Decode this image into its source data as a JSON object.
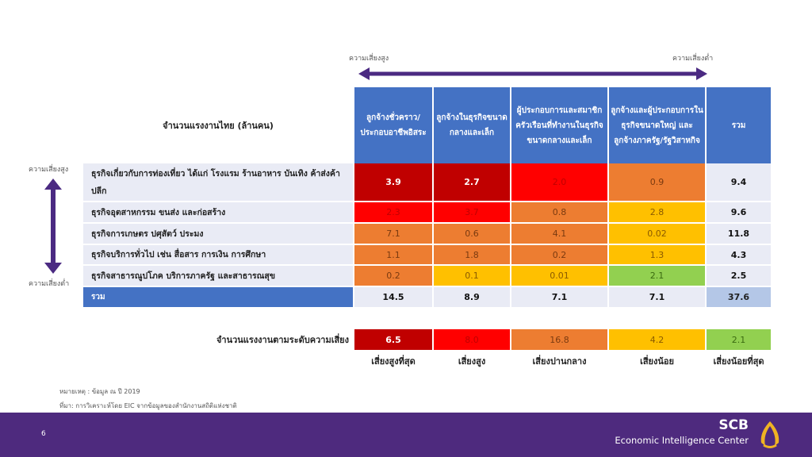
{
  "risk_axis": {
    "high": "ความเสี่ยงสูง",
    "low": "ความเสี่ยงต่ำ"
  },
  "table": {
    "title": "จำนวนแรงงานไทย (ล้านคน)",
    "columns": [
      "ลูกจ้างชั่วคราว/ประกอบอาชีพอิสระ",
      "ลูกจ้างในธุรกิจขนาดกลางและเล็ก",
      "ผู้ประกอบการและสมาชิกครัวเรือนที่ทำงานในธุรกิจขนาดกลางและเล็ก",
      "ลูกจ้างและผู้ประกอบการในธุรกิจขนาดใหญ่ และลูกจ้างภาครัฐ/รัฐวิสาหกิจ",
      "รวม"
    ],
    "rows": [
      {
        "label": "ธุรกิจเกี่ยวกับการท่องเที่ยว ได้แก่ โรงแรม ร้านอาหาร บันเทิง ค้าส่งค้าปลีก",
        "values": [
          "3.9",
          "2.7",
          "2.0",
          "0.9",
          "9.4"
        ]
      },
      {
        "label": "ธุรกิจอุตสาหกรรม ขนส่ง และก่อสร้าง",
        "values": [
          "2.3",
          "3.7",
          "0.8",
          "2.8",
          "9.6"
        ]
      },
      {
        "label": "ธุรกิจการเกษตร ปศุสัตว์ ประมง",
        "values": [
          "7.1",
          "0.6",
          "4.1",
          "0.02",
          "11.8"
        ]
      },
      {
        "label": "ธุรกิจบริการทั่วไป เช่น สื่อสาร การเงิน การศึกษา",
        "values": [
          "1.1",
          "1.8",
          "0.2",
          "1.3",
          "4.3"
        ]
      },
      {
        "label": "ธุรกิจสาธารณูปโภค บริการภาครัฐ และสาธารณสุข",
        "values": [
          "0.2",
          "0.1",
          "0.01",
          "2.1",
          "2.5"
        ]
      }
    ],
    "total": {
      "label": "รวม",
      "values": [
        "14.5",
        "8.9",
        "7.1",
        "7.1",
        "37.6"
      ]
    }
  },
  "risk_levels": {
    "label": "จำนวนแรงงานตามระดับความเสี่ยง",
    "values": [
      "6.5",
      "8.0",
      "16.8",
      "4.2",
      "2.1"
    ],
    "names": [
      "เสี่ยงสูงที่สุด",
      "เสี่ยงสูง",
      "เสี่ยงปานกลาง",
      "เสี่ยงน้อย",
      "เสี่ยงน้อยที่สุด"
    ]
  },
  "notes": {
    "note": "หมายเหตุ : ข้อมูล ณ ปี 2019",
    "source": "ที่มา: การวิเคราะห์โดย EIC จากข้อมูลของสำนักงานสถิติแห่งชาติ"
  },
  "footer": {
    "page": "6",
    "brand": "SCB",
    "brand_sub": "Economic Intelligence Center"
  }
}
